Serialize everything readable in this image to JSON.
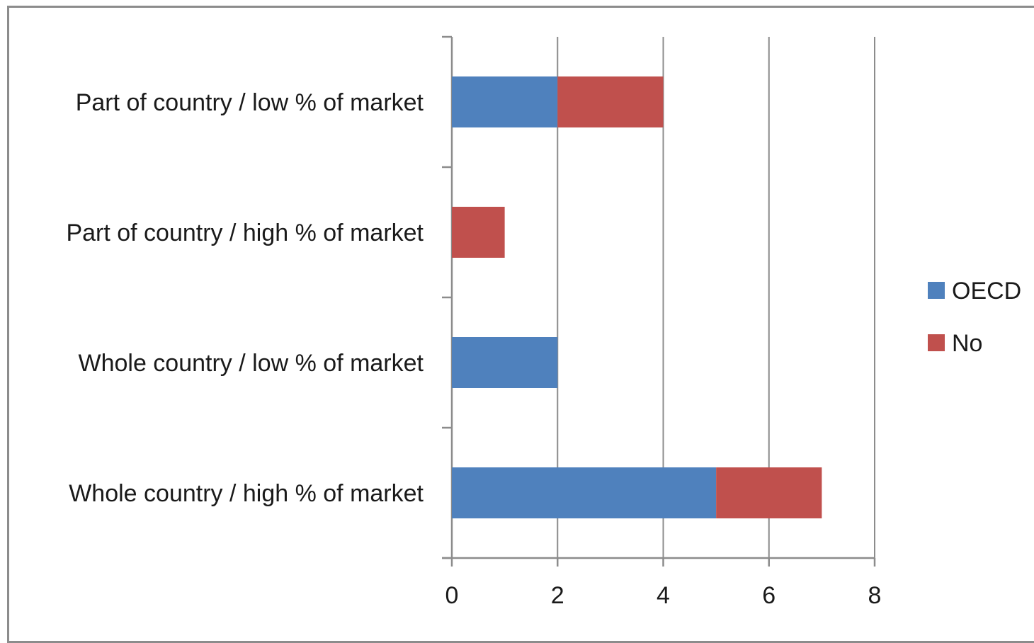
{
  "chart_data": {
    "type": "bar",
    "orientation": "horizontal",
    "stacked": true,
    "categories": [
      "Part of country / low % of market",
      "Part of country / high % of market",
      "Whole country / low % of market",
      "Whole country / high % of market"
    ],
    "series": [
      {
        "name": "OECD",
        "color": "#4f81bd",
        "values": [
          2,
          0,
          2,
          5
        ]
      },
      {
        "name": "No",
        "color": "#c0504d",
        "values": [
          2,
          1,
          0,
          2
        ]
      }
    ],
    "xlim": [
      0,
      8
    ],
    "xticks": [
      "0",
      "2",
      "4",
      "6",
      "8"
    ],
    "grid": "vertical",
    "legend_position": "right",
    "title": "",
    "xlabel": "",
    "ylabel": ""
  }
}
